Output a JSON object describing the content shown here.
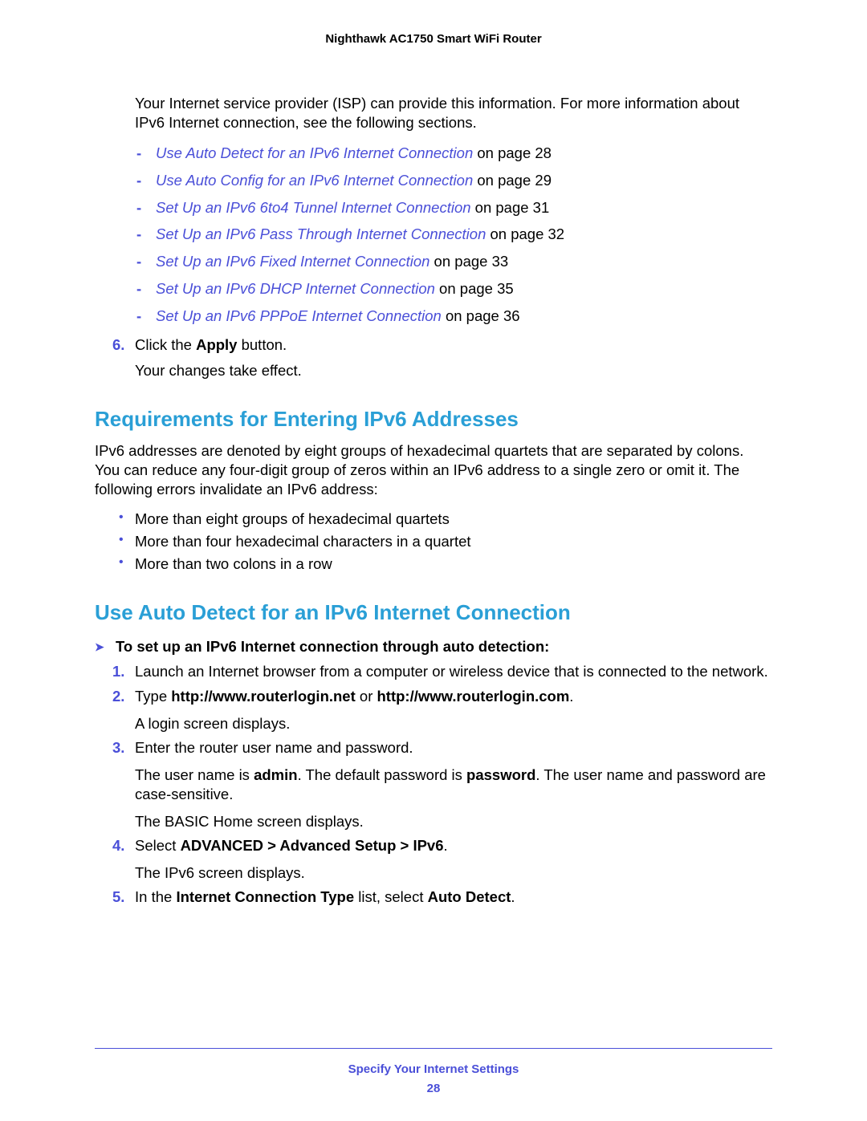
{
  "header": {
    "title": "Nighthawk AC1750 Smart WiFi Router"
  },
  "intro": "Your Internet service provider (ISP) can provide this information. For more information about IPv6 Internet connection, see the following sections.",
  "links": [
    {
      "text": "Use Auto Detect for an IPv6 Internet Connection",
      "suffix": " on page 28"
    },
    {
      "text": "Use Auto Config for an IPv6 Internet Connection",
      "suffix": " on page 29"
    },
    {
      "text": "Set Up an IPv6 6to4 Tunnel Internet Connection",
      "suffix": " on page 31"
    },
    {
      "text": "Set Up an IPv6 Pass Through Internet Connection",
      "suffix": " on page 32"
    },
    {
      "text": "Set Up an IPv6 Fixed Internet Connection",
      "suffix": " on page 33"
    },
    {
      "text": "Set Up an IPv6 DHCP Internet Connection",
      "suffix": " on page 35"
    },
    {
      "text": "Set Up an IPv6 PPPoE Internet Connection",
      "suffix": " on page 36"
    }
  ],
  "step6": {
    "num": "6.",
    "pre": "Click the ",
    "bold": "Apply",
    "post": " button.",
    "follow": "Your changes take effect."
  },
  "sec1": {
    "title": "Requirements for Entering IPv6 Addresses",
    "para": "IPv6 addresses are denoted by eight groups of hexadecimal quartets that are separated by colons. You can reduce any four-digit group of zeros within an IPv6 address to a single zero or omit it. The following errors invalidate an IPv6 address:",
    "bullets": [
      "More than eight groups of hexadecimal quartets",
      "More than four hexadecimal characters in a quartet",
      "More than two colons in a row"
    ]
  },
  "sec2": {
    "title": "Use Auto Detect for an IPv6 Internet Connection",
    "proc": "To set up an IPv6 Internet connection through auto detection:",
    "s1": {
      "num": "1.",
      "text": "Launch an Internet browser from a computer or wireless device that is connected to the network."
    },
    "s2": {
      "num": "2.",
      "pre": "Type ",
      "b1": "http://www.routerlogin.net",
      "mid": " or ",
      "b2": "http://www.routerlogin.com",
      "post": ".",
      "follow": "A login screen displays."
    },
    "s3": {
      "num": "3.",
      "text": "Enter the router user name and password.",
      "f1a": "The user name is ",
      "f1b": "admin",
      "f1c": ". The default password is ",
      "f1d": "password",
      "f1e": ". The user name and password are case-sensitive.",
      "f2": "The BASIC Home screen displays."
    },
    "s4": {
      "num": "4.",
      "pre": "Select ",
      "bold": "ADVANCED > Advanced Setup > IPv6",
      "post": ".",
      "follow": "The IPv6 screen displays."
    },
    "s5": {
      "num": "5.",
      "pre": "In the ",
      "b1": "Internet Connection Type",
      "mid": " list, select ",
      "b2": "Auto Detect",
      "post": "."
    }
  },
  "footer": {
    "title": "Specify Your Internet Settings",
    "page": "28"
  }
}
